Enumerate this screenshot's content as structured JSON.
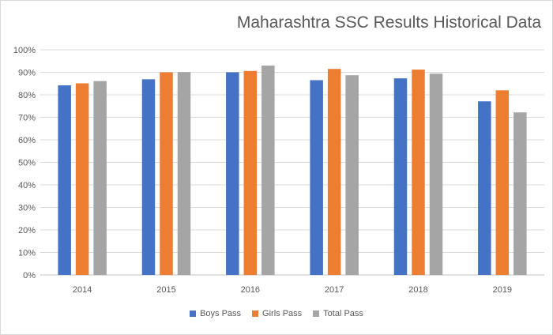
{
  "chart_data": {
    "type": "bar",
    "title": "Maharashtra SSC Results Historical Data",
    "xlabel": "",
    "ylabel": "",
    "categories": [
      "2014",
      "2015",
      "2016",
      "2017",
      "2018",
      "2019"
    ],
    "series": [
      {
        "name": "Boys Pass",
        "color": "#4472c4",
        "values": [
          84.2,
          86.9,
          90.0,
          86.5,
          87.3,
          77.1
        ]
      },
      {
        "name": "Girls Pass",
        "color": "#ed7d31",
        "values": [
          85.1,
          90.0,
          90.6,
          91.5,
          91.2,
          82.0
        ]
      },
      {
        "name": "Total Pass",
        "color": "#a5a5a5",
        "values": [
          86.1,
          90.1,
          93.0,
          88.7,
          89.4,
          72.2
        ]
      }
    ],
    "ylim": [
      0,
      100
    ],
    "yticks": [
      "0%",
      "10%",
      "20%",
      "30%",
      "40%",
      "50%",
      "60%",
      "70%",
      "80%",
      "90%",
      "100%"
    ],
    "grid": true,
    "legend_position": "bottom"
  }
}
